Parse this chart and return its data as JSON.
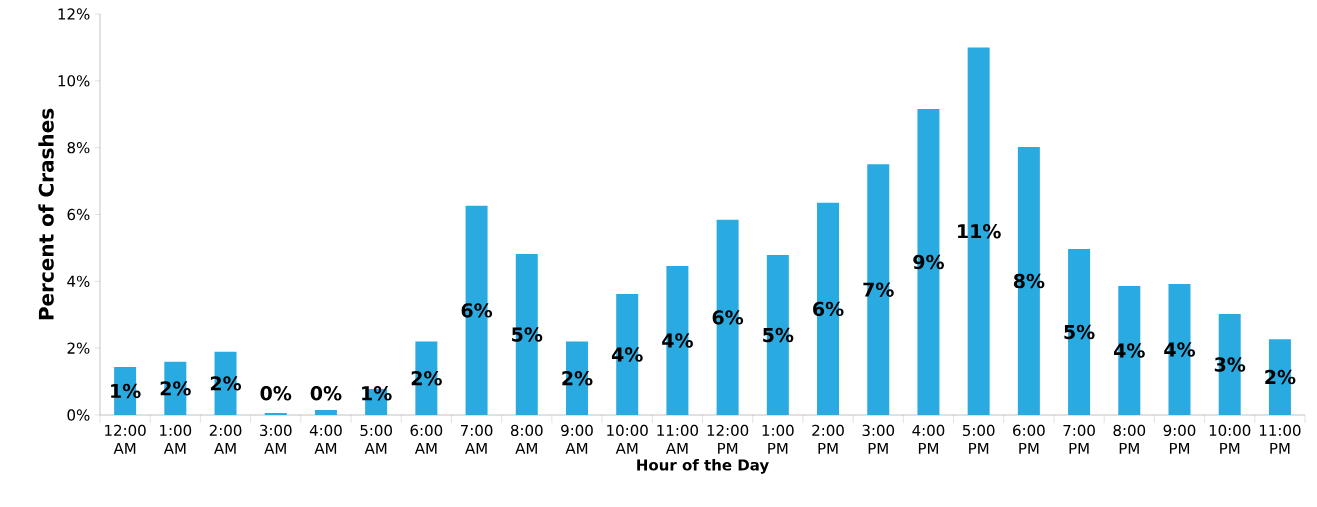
{
  "chart_data": {
    "type": "bar",
    "xlabel": "Hour of the Day",
    "ylabel": "Percent of Crashes",
    "categories": [
      "12:00 AM",
      "1:00 AM",
      "2:00 AM",
      "3:00 AM",
      "4:00 AM",
      "5:00 AM",
      "6:00 AM",
      "7:00 AM",
      "8:00 AM",
      "9:00 AM",
      "10:00 AM",
      "11:00 AM",
      "12:00 PM",
      "1:00 PM",
      "2:00 PM",
      "3:00 PM",
      "4:00 PM",
      "5:00 PM",
      "6:00 PM",
      "7:00 PM",
      "8:00 PM",
      "9:00 PM",
      "10:00 PM",
      "11:00 PM"
    ],
    "values": [
      1.44,
      1.59,
      1.89,
      0.06,
      0.15,
      0.78,
      2.2,
      6.26,
      4.82,
      2.2,
      3.62,
      4.46,
      5.84,
      4.79,
      6.35,
      7.5,
      9.16,
      11.0,
      8.02,
      4.97,
      3.86,
      3.92,
      3.02,
      2.27
    ],
    "value_labels": [
      "1%",
      "2%",
      "2%",
      "0%",
      "0%",
      "1%",
      "2%",
      "6%",
      "5%",
      "2%",
      "4%",
      "4%",
      "6%",
      "5%",
      "6%",
      "7%",
      "9%",
      "11%",
      "8%",
      "5%",
      "4%",
      "4%",
      "3%",
      "2%"
    ],
    "color": "#29abe2",
    "ylim": [
      0,
      12
    ],
    "yticks": [
      {
        "value": 0,
        "label": "0%"
      },
      {
        "value": 2,
        "label": "2%"
      },
      {
        "value": 4,
        "label": "4%"
      },
      {
        "value": 6,
        "label": "6%"
      },
      {
        "value": 8,
        "label": "8%"
      },
      {
        "value": 10,
        "label": "10%"
      },
      {
        "value": 12,
        "label": "12%"
      }
    ],
    "grid": false
  }
}
